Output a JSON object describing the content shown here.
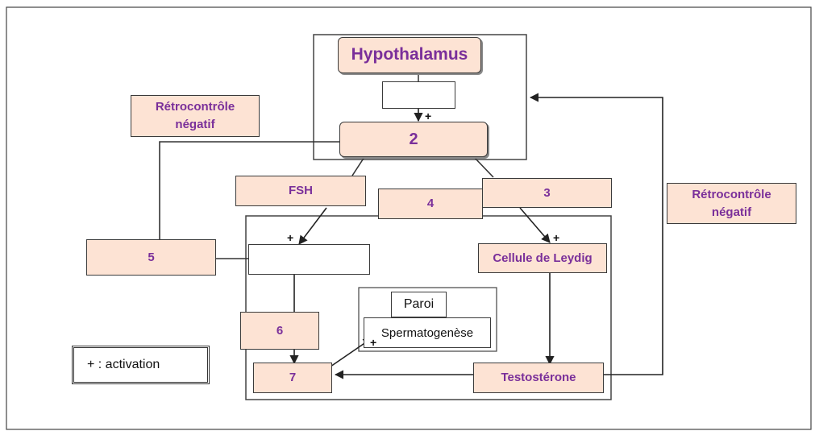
{
  "hypothalamus": "Hypothalamus",
  "label_2": "2",
  "label_3": "3",
  "label_4": "4",
  "label_5": "5",
  "label_6": "6",
  "label_7": "7",
  "fsh": "FSH",
  "retro_left_line1": "Rétrocontrôle",
  "retro_left_line2": "négatif",
  "retro_right_line1": "Rétrocontrôle",
  "retro_right_line2": "négatif",
  "leydig": "Cellule de Leydig",
  "testosterone": "Testostérone",
  "paroi": "Paroi",
  "spermatogenese": "Spermatogenèse",
  "legend": "+ : activation",
  "plus_sign": "+",
  "colors": {
    "box_fill": "#fde3d4",
    "text_purple": "#7a2f9a",
    "line": "#3a3a3a"
  }
}
